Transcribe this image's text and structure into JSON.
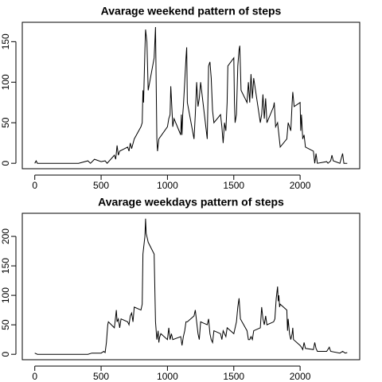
{
  "chart_data": [
    {
      "type": "line",
      "title": "Avarage weekend pattern of steps",
      "color": "#000000",
      "x": [
        0,
        10,
        20,
        100,
        200,
        300,
        330,
        400,
        420,
        450,
        500,
        530,
        545,
        600,
        610,
        620,
        630,
        640,
        700,
        710,
        720,
        730,
        750,
        800,
        810,
        815,
        820,
        830,
        835,
        845,
        850,
        855,
        900,
        905,
        910,
        920,
        925,
        935,
        1000,
        1010,
        1020,
        1025,
        1030,
        1040,
        1050,
        1100,
        1105,
        1110,
        1115,
        1120,
        1130,
        1140,
        1145,
        1150,
        1200,
        1210,
        1220,
        1230,
        1240,
        1250,
        1300,
        1310,
        1320,
        1330,
        1340,
        1350,
        1400,
        1410,
        1420,
        1430,
        1440,
        1450,
        1455,
        1500,
        1505,
        1510,
        1520,
        1530,
        1540,
        1545,
        1555,
        1600,
        1610,
        1620,
        1630,
        1640,
        1650,
        1700,
        1710,
        1720,
        1730,
        1740,
        1750,
        1800,
        1805,
        1815,
        1830,
        1850,
        1900,
        1910,
        1920,
        1930,
        1940,
        1945,
        1955,
        2000,
        2005,
        2010,
        2020,
        2030,
        2040,
        2100,
        2110,
        2120,
        2130,
        2200,
        2210,
        2230,
        2240,
        2250,
        2300,
        2320,
        2330,
        2355
      ],
      "values": [
        0,
        3,
        0,
        0,
        0,
        0,
        0,
        3,
        0,
        5,
        2,
        3,
        0,
        10,
        5,
        22,
        10,
        15,
        20,
        15,
        25,
        18,
        30,
        45,
        50,
        90,
        75,
        140,
        165,
        150,
        120,
        90,
        130,
        150,
        168,
        30,
        15,
        30,
        45,
        55,
        60,
        95,
        80,
        45,
        55,
        35,
        60,
        35,
        60,
        70,
        100,
        130,
        143,
        75,
        30,
        60,
        100,
        70,
        80,
        100,
        30,
        120,
        125,
        105,
        65,
        50,
        60,
        45,
        25,
        50,
        40,
        75,
        120,
        130,
        75,
        50,
        60,
        120,
        140,
        145,
        90,
        75,
        100,
        75,
        110,
        80,
        105,
        50,
        60,
        85,
        55,
        80,
        50,
        70,
        75,
        45,
        50,
        20,
        30,
        50,
        45,
        40,
        75,
        88,
        70,
        75,
        40,
        60,
        30,
        35,
        20,
        15,
        0,
        12,
        0,
        2,
        0,
        3,
        10,
        3,
        0,
        12,
        0,
        0
      ],
      "xlim": [
        -94.2,
        2449.2
      ],
      "ylim": [
        -6.7,
        173.9
      ],
      "xticks": [
        0,
        500,
        1000,
        1500,
        2000
      ],
      "yticks": [
        0,
        50,
        100,
        150
      ]
    },
    {
      "type": "line",
      "title": "Avarage weekdays pattern of steps",
      "color": "#000000",
      "x": [
        0,
        20,
        100,
        200,
        300,
        400,
        430,
        500,
        520,
        530,
        540,
        550,
        555,
        600,
        610,
        615,
        620,
        630,
        640,
        650,
        700,
        710,
        720,
        730,
        740,
        750,
        800,
        810,
        815,
        820,
        830,
        835,
        840,
        850,
        855,
        900,
        910,
        920,
        930,
        935,
        940,
        950,
        1000,
        1010,
        1020,
        1030,
        1040,
        1100,
        1110,
        1120,
        1130,
        1140,
        1150,
        1200,
        1210,
        1220,
        1230,
        1240,
        1250,
        1300,
        1310,
        1320,
        1330,
        1340,
        1350,
        1400,
        1410,
        1420,
        1430,
        1440,
        1450,
        1500,
        1520,
        1530,
        1540,
        1550,
        1600,
        1610,
        1620,
        1630,
        1640,
        1650,
        1700,
        1710,
        1720,
        1730,
        1740,
        1750,
        1800,
        1810,
        1820,
        1830,
        1835,
        1840,
        1845,
        1850,
        1900,
        1905,
        1910,
        1920,
        1930,
        1940,
        1945,
        1950,
        2000,
        2010,
        2020,
        2030,
        2040,
        2100,
        2110,
        2120,
        2130,
        2200,
        2220,
        2230,
        2300,
        2320,
        2340,
        2355
      ],
      "values": [
        2,
        0,
        0,
        0,
        0,
        0,
        2,
        2,
        5,
        3,
        20,
        50,
        55,
        45,
        65,
        75,
        55,
        60,
        45,
        60,
        55,
        50,
        65,
        70,
        55,
        80,
        75,
        85,
        170,
        180,
        200,
        230,
        205,
        195,
        190,
        170,
        55,
        25,
        40,
        20,
        28,
        35,
        25,
        45,
        25,
        35,
        25,
        30,
        15,
        30,
        40,
        55,
        55,
        65,
        75,
        55,
        35,
        25,
        55,
        50,
        60,
        35,
        25,
        20,
        40,
        35,
        25,
        40,
        35,
        30,
        45,
        35,
        55,
        80,
        95,
        60,
        40,
        25,
        25,
        30,
        25,
        40,
        45,
        80,
        60,
        50,
        65,
        50,
        55,
        60,
        95,
        115,
        90,
        100,
        80,
        85,
        75,
        40,
        60,
        35,
        25,
        35,
        45,
        25,
        15,
        12,
        8,
        20,
        10,
        8,
        20,
        10,
        5,
        5,
        12,
        5,
        2,
        5,
        2,
        3
      ],
      "xlim": [
        -94.2,
        2449.2
      ],
      "ylim": [
        -9.2,
        239.2
      ],
      "xticks": [
        0,
        500,
        1000,
        1500,
        2000
      ],
      "yticks": [
        0,
        50,
        100,
        150,
        200
      ]
    }
  ]
}
